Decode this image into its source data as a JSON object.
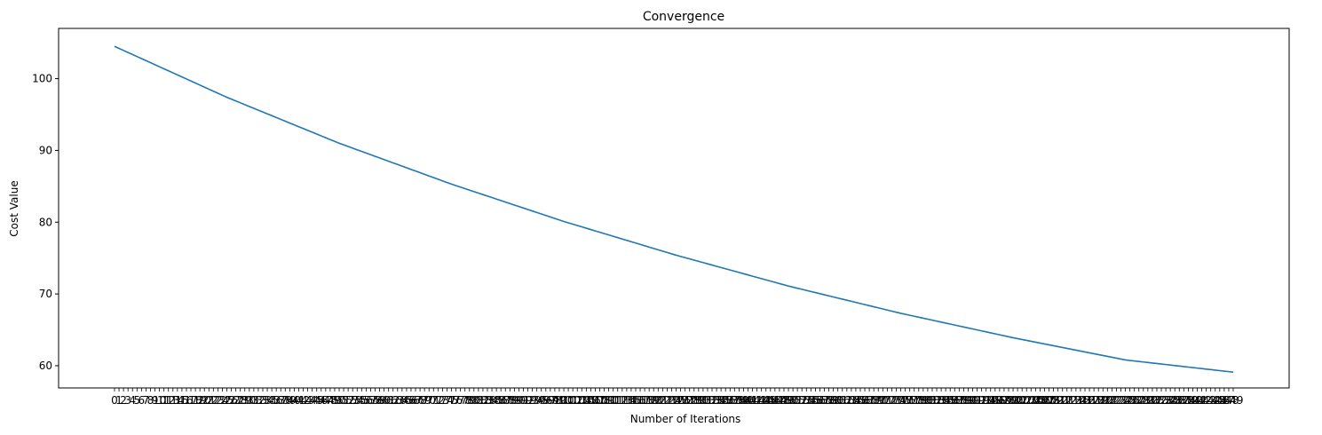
{
  "chart_data": {
    "type": "line",
    "title": "Convergence",
    "xlabel": "Number of Iterations",
    "ylabel": "Cost Value",
    "x_range": [
      0,
      249
    ],
    "x_ticks": "one label per integer iteration from 0 to 249 (labels overlap)",
    "ylim": [
      56.9,
      107.0
    ],
    "y_ticks": [
      60,
      70,
      80,
      90,
      100
    ],
    "grid": false,
    "legend": "none",
    "series": [
      {
        "color": "#1f77b4",
        "x": [
          0,
          25,
          50,
          75,
          100,
          125,
          150,
          175,
          200,
          225,
          249
        ],
        "y": [
          104.5,
          97.4,
          91.0,
          85.3,
          80.1,
          75.4,
          71.1,
          67.3,
          63.9,
          60.8,
          59.1
        ]
      }
    ]
  }
}
